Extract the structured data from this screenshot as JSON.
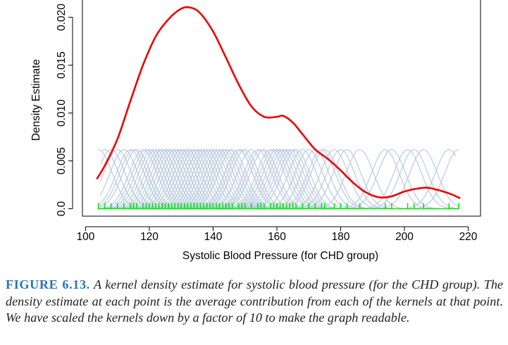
{
  "chart_data": {
    "type": "line",
    "title": "",
    "xlabel": "Systolic Blood Pressure (for CHD group)",
    "ylabel": "Density Estimate",
    "xlim": [
      100,
      220
    ],
    "ylim": [
      0,
      0.0215
    ],
    "x_ticks": [
      "100",
      "120",
      "140",
      "160",
      "180",
      "200",
      "220"
    ],
    "y_ticks": [
      "0.0",
      "0.005",
      "0.010",
      "0.015",
      "0.020"
    ],
    "grid": false,
    "legend": "none",
    "series": [
      {
        "role": "density-estimate",
        "color": "#ee0000",
        "x": [
          103.5,
          106,
          110,
          114,
          118,
          122,
          126,
          130,
          133,
          136,
          140,
          144,
          148,
          152,
          156,
          160,
          162,
          165,
          168,
          172,
          176,
          180,
          184,
          188,
          192,
          196,
          200,
          204,
          207,
          210,
          214,
          217.5
        ],
        "y": [
          0.0031,
          0.0045,
          0.0073,
          0.0112,
          0.015,
          0.018,
          0.0198,
          0.0209,
          0.021,
          0.0204,
          0.0185,
          0.0158,
          0.013,
          0.0107,
          0.0096,
          0.0096,
          0.0097,
          0.009,
          0.0078,
          0.0062,
          0.0052,
          0.004,
          0.0027,
          0.0017,
          0.0012,
          0.0013,
          0.0018,
          0.0021,
          0.0022,
          0.002,
          0.0016,
          0.0011
        ]
      }
    ],
    "kernels": {
      "color": "#b4c6e0",
      "scaled_peak": 0.0062,
      "bandwidth": 4.3,
      "centers": [
        104,
        106,
        108,
        110,
        112,
        114,
        115,
        116,
        118,
        119,
        120,
        121,
        122,
        123,
        124,
        124,
        125,
        126,
        126,
        127,
        128,
        128,
        129,
        130,
        130,
        131,
        132,
        132,
        133,
        134,
        134,
        135,
        136,
        136,
        137,
        138,
        138,
        139,
        140,
        141,
        142,
        142,
        143,
        144,
        144,
        145,
        146,
        148,
        148,
        149,
        150,
        152,
        154,
        155,
        156,
        158,
        159,
        160,
        160,
        161,
        162,
        162,
        163,
        164,
        165,
        166,
        168,
        170,
        172,
        174,
        175,
        178,
        180,
        182,
        186,
        194,
        196,
        201,
        203,
        206,
        214,
        217
      ]
    },
    "rug": {
      "color": "#00ee00",
      "values": [
        104,
        106,
        108,
        110,
        112,
        114,
        115,
        116,
        118,
        119,
        120,
        121,
        122,
        123,
        124,
        124,
        125,
        126,
        126,
        127,
        128,
        128,
        129,
        130,
        130,
        131,
        132,
        132,
        133,
        134,
        134,
        135,
        136,
        136,
        137,
        138,
        138,
        139,
        140,
        141,
        142,
        142,
        143,
        144,
        144,
        145,
        146,
        148,
        148,
        149,
        150,
        152,
        154,
        155,
        156,
        158,
        159,
        160,
        160,
        161,
        162,
        162,
        163,
        164,
        165,
        166,
        168,
        170,
        172,
        174,
        175,
        178,
        180,
        182,
        186,
        194,
        196,
        201,
        203,
        206,
        214,
        217
      ]
    }
  },
  "caption": {
    "label": "FIGURE 6.13.",
    "text": "A kernel density estimate for systolic blood pressure (for the CHD group). The density estimate at each point is the average contribution from each of the kernels at that point. We have scaled the kernels down by a factor of 10 to make the graph readable."
  }
}
